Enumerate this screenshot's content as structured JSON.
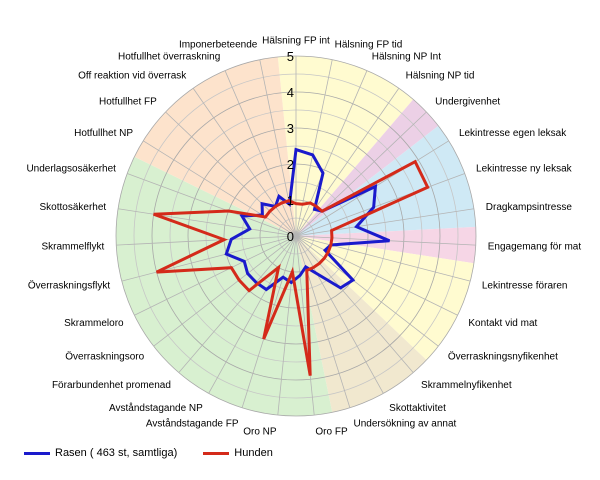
{
  "chart_data": {
    "type": "radar",
    "title": "",
    "rmax": 5,
    "ticks": [
      "0",
      "1",
      "2",
      "3",
      "4",
      "5"
    ],
    "categories": [
      "Hälsning FP int",
      "Hälsning FP tid",
      "Hälsning NP Int",
      "Hälsning NP tid",
      "Undergivenhet",
      "Lekintresse egen leksak",
      "Lekintresse ny leksak",
      "Dragkampsintresse",
      "Engagemang för mat",
      "Lekintresse föraren",
      "Kontakt vid mat",
      "Överraskningsnyfikenhet",
      "Skrammelnyfikenhet",
      "Skottaktivitet",
      "Undersökning av annat",
      "Oro FP",
      "Oro NP",
      "Avståndstagande FP",
      "Avståndstagande NP",
      "Förarbundenhet promenad",
      "Överraskningsoro",
      "Skrammeloro",
      "Överraskningsflykt",
      "Skrammelflykt",
      "Skottosäkerhet",
      "Underlagsosäkerhet",
      "Hotfullhet NP",
      "Hotfullhet FP",
      "Off reaktion vid överrask",
      "Hotfullhet överraskning",
      "Imponerbeteende"
    ],
    "series": [
      {
        "name": "Rasen ( 463 st, samtliga)",
        "color": "#1a1acc",
        "values": [
          2.4,
          2.3,
          1.9,
          0.9,
          1.0,
          2.6,
          2.3,
          1.7,
          2.6,
          1.0,
          0.9,
          2.0,
          1.9,
          1.2,
          0.9,
          1.1,
          1.3,
          1.2,
          1.7,
          1.7,
          1.7,
          1.6,
          2.0,
          1.8,
          1.3,
          1.6,
          1.1,
          1.3,
          1.0,
          1.2,
          0.9
        ]
      },
      {
        "name": "Hunden",
        "color": "#d42a1a",
        "values": [
          0.9,
          0.9,
          1.0,
          1.0,
          1.0,
          3.9,
          3.9,
          1.0,
          1.0,
          1.0,
          1.0,
          1.0,
          1.0,
          1.0,
          1.0,
          3.9,
          1.0,
          3.0,
          1.0,
          2.0,
          2.0,
          2.0,
          4.0,
          2.0,
          4.0,
          2.0,
          1.0,
          1.0,
          1.0,
          1.0,
          1.0
        ]
      }
    ],
    "sectors": [
      {
        "from": 0,
        "to": 3,
        "color": "#fffbd0"
      },
      {
        "from": 4,
        "to": 4,
        "color": "#ecd0e6"
      },
      {
        "from": 5,
        "to": 7,
        "color": "#cfe9f5"
      },
      {
        "from": 8,
        "to": 8,
        "color": "#f6d6e6"
      },
      {
        "from": 9,
        "to": 11,
        "color": "#fffbd0"
      },
      {
        "from": 12,
        "to": 14,
        "color": "#f1e8cf"
      },
      {
        "from": 15,
        "to": 25,
        "color": "#d8f0d0"
      },
      {
        "from": 26,
        "to": 30,
        "color": "#fde3cc"
      }
    ],
    "legend_position": "bottom-left",
    "grid": true
  }
}
